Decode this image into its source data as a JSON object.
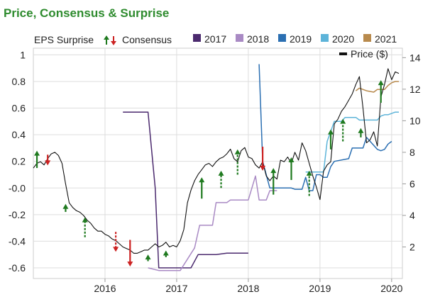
{
  "chart_data": {
    "type": "line",
    "title": "Price, Consensus & Surprise",
    "legend": {
      "eps_surprise_label": "EPS Surprise",
      "consensus_label": "Consensus",
      "price_label": "Price ($)",
      "years": [
        {
          "name": "2017",
          "color": "#4b2a6e"
        },
        {
          "name": "2018",
          "color": "#a98ac4"
        },
        {
          "name": "2019",
          "color": "#2b6fb2"
        },
        {
          "name": "2020",
          "color": "#5db4d9"
        },
        {
          "name": "2021",
          "color": "#b88a4d"
        }
      ]
    },
    "colors": {
      "title": "#2e8b2e",
      "up_arrow": "#1f7a1f",
      "down_arrow": "#cc2222",
      "price": "#111111",
      "grid": "#dddddd"
    },
    "x_axis": {
      "ticks": [
        "2016",
        "2017",
        "2018",
        "2019",
        "2020"
      ],
      "range": [
        2015.0,
        2020.15
      ]
    },
    "y_left": {
      "ticks": [
        "1",
        "0.8",
        "0.6",
        "0.4",
        "0.2",
        "-0.0",
        "-0.2",
        "-0.4",
        "-0.6"
      ],
      "range": [
        -0.68,
        1.05
      ]
    },
    "y_right": {
      "ticks": [
        "14",
        "12",
        "10",
        "8",
        "6",
        "4",
        "2"
      ],
      "range": [
        0,
        14.6
      ]
    },
    "series": [
      {
        "name": "Price ($)",
        "axis": "right",
        "color": "#111111",
        "x": [
          2015.0,
          2015.05,
          2015.1,
          2015.15,
          2015.2,
          2015.25,
          2015.3,
          2015.35,
          2015.4,
          2015.45,
          2015.5,
          2015.55,
          2015.6,
          2015.65,
          2015.7,
          2015.75,
          2015.8,
          2015.85,
          2015.9,
          2015.95,
          2016.0,
          2016.05,
          2016.1,
          2016.15,
          2016.2,
          2016.25,
          2016.3,
          2016.35,
          2016.4,
          2016.45,
          2016.5,
          2016.55,
          2016.6,
          2016.65,
          2016.7,
          2016.75,
          2016.8,
          2016.85,
          2016.9,
          2016.95,
          2017.0,
          2017.05,
          2017.1,
          2017.15,
          2017.2,
          2017.25,
          2017.3,
          2017.35,
          2017.4,
          2017.45,
          2017.5,
          2017.55,
          2017.6,
          2017.65,
          2017.7,
          2017.75,
          2017.8,
          2017.85,
          2017.9,
          2017.95,
          2018.0,
          2018.05,
          2018.1,
          2018.15,
          2018.2,
          2018.25,
          2018.3,
          2018.35,
          2018.4,
          2018.45,
          2018.5,
          2018.55,
          2018.6,
          2018.65,
          2018.7,
          2018.75,
          2018.8,
          2018.85,
          2018.9,
          2018.95,
          2019.0,
          2019.05,
          2019.1,
          2019.15,
          2019.2,
          2019.25,
          2019.3,
          2019.35,
          2019.4,
          2019.45,
          2019.5,
          2019.55,
          2019.6,
          2019.65,
          2019.7,
          2019.75,
          2019.8,
          2019.85,
          2019.9,
          2019.95,
          2020.0,
          2020.05,
          2020.1
        ],
        "y": [
          7.0,
          7.3,
          7.4,
          7.2,
          7.6,
          7.9,
          8.0,
          7.8,
          7.3,
          6.0,
          4.8,
          4.5,
          4.3,
          4.2,
          4.0,
          3.7,
          3.5,
          3.2,
          3.0,
          3.0,
          2.8,
          2.7,
          2.5,
          2.4,
          2.2,
          2.0,
          1.9,
          1.8,
          1.6,
          1.6,
          1.7,
          1.8,
          1.8,
          2.0,
          2.2,
          2.0,
          2.1,
          2.3,
          2.0,
          2.1,
          2.0,
          2.4,
          3.1,
          4.8,
          5.6,
          6.2,
          6.6,
          6.9,
          7.2,
          7.3,
          7.1,
          7.4,
          7.6,
          7.7,
          7.9,
          8.2,
          7.6,
          7.4,
          8.1,
          8.3,
          7.7,
          7.6,
          7.2,
          7.0,
          7.4,
          6.5,
          6.2,
          6.5,
          6.3,
          7.5,
          7.4,
          7.7,
          7.3,
          8.0,
          7.5,
          8.6,
          8.1,
          7.3,
          6.5,
          5.8,
          5.0,
          6.8,
          7.2,
          7.4,
          9.8,
          10.1,
          10.6,
          10.9,
          11.3,
          11.7,
          12.3,
          12.8,
          10.8,
          8.6,
          8.8,
          9.3,
          8.4,
          11.5,
          12.3,
          13.3,
          12.6,
          13.1,
          13.0
        ]
      },
      {
        "name": "2017",
        "axis": "left",
        "color": "#4b2a6e",
        "x": [
          2016.25,
          2016.45,
          2016.6,
          2016.7,
          2016.75,
          2017.2,
          2017.3,
          2017.45,
          2017.55,
          2017.7,
          2018.0
        ],
        "y": [
          0.57,
          0.57,
          0.57,
          -0.0,
          -0.6,
          -0.6,
          -0.5,
          -0.5,
          -0.5,
          -0.49,
          -0.49
        ]
      },
      {
        "name": "2018",
        "axis": "left",
        "color": "#a98ac4",
        "x": [
          2016.6,
          2016.75,
          2017.05,
          2017.25,
          2017.32,
          2017.38,
          2017.5,
          2017.55,
          2017.7,
          2017.75,
          2018.0,
          2018.1,
          2018.15,
          2018.25,
          2018.3,
          2018.4
        ],
        "y": [
          -0.6,
          -0.62,
          -0.62,
          -0.45,
          -0.28,
          -0.28,
          -0.28,
          -0.11,
          -0.11,
          -0.09,
          -0.09,
          0.09,
          -0.09,
          -0.09,
          -0.02,
          -0.02
        ]
      },
      {
        "name": "2019",
        "axis": "left",
        "color": "#2b6fb2",
        "x": [
          2018.15,
          2018.2,
          2018.3,
          2018.6,
          2018.65,
          2018.75,
          2018.8,
          2018.85,
          2018.9,
          2018.95,
          2019.0,
          2019.05,
          2019.1,
          2019.15,
          2019.2,
          2019.4,
          2019.45,
          2019.6,
          2019.65,
          2019.8,
          2019.85,
          2019.9,
          2019.95,
          2020.0
        ],
        "y": [
          0.93,
          0.2,
          0.0,
          0.0,
          -0.01,
          -0.01,
          0.08,
          -0.02,
          -0.02,
          0.1,
          0.1,
          0.08,
          0.08,
          0.16,
          0.2,
          0.22,
          0.3,
          0.3,
          0.38,
          0.29,
          0.28,
          0.29,
          0.33,
          0.35
        ]
      },
      {
        "name": "2020",
        "axis": "left",
        "color": "#5db4d9",
        "x": [
          2018.8,
          2018.9,
          2019.05,
          2019.1,
          2019.2,
          2019.3,
          2019.35,
          2019.5,
          2019.55,
          2019.8,
          2019.85,
          2019.9,
          2019.95,
          2020.05,
          2020.1
        ],
        "y": [
          0.12,
          0.12,
          0.12,
          0.35,
          0.5,
          0.5,
          0.53,
          0.53,
          0.51,
          0.51,
          0.54,
          0.55,
          0.55,
          0.57,
          0.57
        ]
      },
      {
        "name": "2021",
        "axis": "left",
        "color": "#b88a4d",
        "x": [
          2019.5,
          2019.55,
          2019.65,
          2019.75,
          2019.8,
          2019.9,
          2019.95,
          2020.0,
          2020.05,
          2020.1
        ],
        "y": [
          0.73,
          0.75,
          0.73,
          0.72,
          0.74,
          0.74,
          0.77,
          0.79,
          0.8,
          0.8
        ]
      }
    ],
    "surprises": [
      {
        "x": 2015.05,
        "dir": "up",
        "style": "solid",
        "from": 0.15,
        "to": 0.28
      },
      {
        "x": 2015.2,
        "dir": "down",
        "style": "solid",
        "from": 0.25,
        "to": 0.17
      },
      {
        "x": 2015.45,
        "dir": "up",
        "style": "solid",
        "from": -0.18,
        "to": -0.12
      },
      {
        "x": 2015.72,
        "dir": "up",
        "style": "dashed",
        "from": -0.37,
        "to": -0.22
      },
      {
        "x": 2016.15,
        "dir": "down",
        "style": "dashed",
        "from": -0.33,
        "to": -0.48
      },
      {
        "x": 2016.35,
        "dir": "down",
        "style": "solid",
        "from": -0.39,
        "to": -0.59
      },
      {
        "x": 2016.6,
        "dir": "up",
        "style": "dashed",
        "from": -0.55,
        "to": -0.5
      },
      {
        "x": 2016.85,
        "dir": "up",
        "style": "solid",
        "from": -0.52,
        "to": -0.47
      },
      {
        "x": 2017.35,
        "dir": "up",
        "style": "solid",
        "from": -0.08,
        "to": 0.08
      },
      {
        "x": 2017.62,
        "dir": "up",
        "style": "dashed",
        "from": 0.0,
        "to": 0.13
      },
      {
        "x": 2017.85,
        "dir": "up",
        "style": "dashed",
        "from": 0.1,
        "to": 0.29
      },
      {
        "x": 2018.2,
        "dir": "down",
        "style": "solid",
        "from": 0.31,
        "to": 0.13
      },
      {
        "x": 2018.35,
        "dir": "up",
        "style": "solid",
        "from": -0.05,
        "to": 0.15
      },
      {
        "x": 2018.6,
        "dir": "up",
        "style": "solid",
        "from": 0.06,
        "to": 0.23
      },
      {
        "x": 2018.85,
        "dir": "up",
        "style": "dashed",
        "from": -0.06,
        "to": 0.13
      },
      {
        "x": 2019.15,
        "dir": "up",
        "style": "solid",
        "from": 0.29,
        "to": 0.44
      },
      {
        "x": 2019.32,
        "dir": "up",
        "style": "dashed",
        "from": 0.35,
        "to": 0.52
      },
      {
        "x": 2019.57,
        "dir": "up",
        "style": "solid",
        "from": 0.38,
        "to": 0.45
      },
      {
        "x": 2019.85,
        "dir": "up",
        "style": "solid",
        "from": 0.64,
        "to": 0.81
      }
    ]
  }
}
